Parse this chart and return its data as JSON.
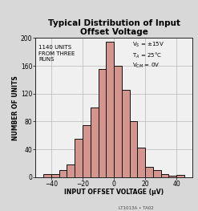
{
  "title": "Typical Distribution of Input\nOffset Voltage",
  "xlabel": "INPUT OFFSET VOLTAGE (μV)",
  "ylabel": "NUMBER OF UNITS",
  "bin_edges": [
    -45,
    -40,
    -35,
    -30,
    -25,
    -20,
    -15,
    -10,
    -5,
    0,
    5,
    10,
    15,
    20,
    25,
    30,
    35,
    40,
    45
  ],
  "bar_heights": [
    5,
    5,
    10,
    18,
    55,
    75,
    100,
    155,
    195,
    160,
    125,
    80,
    42,
    15,
    10,
    5,
    2,
    3
  ],
  "bar_color": "#d4958e",
  "bar_edgecolor": "#111111",
  "xlim": [
    -50,
    50
  ],
  "ylim": [
    0,
    200
  ],
  "xticks": [
    -40,
    -20,
    0,
    20,
    40
  ],
  "yticks": [
    0,
    40,
    80,
    120,
    160,
    200
  ],
  "grid_color": "#aaaaaa",
  "background_color": "#f0f0f0",
  "title_fontsize": 7.5,
  "axis_label_fontsize": 5.5,
  "tick_fontsize": 5.5,
  "annotation_fontsize": 5.0,
  "linewidth": 0.7,
  "figure_facecolor": "#d8d8d8",
  "watermark": "LT1013A • TA02"
}
